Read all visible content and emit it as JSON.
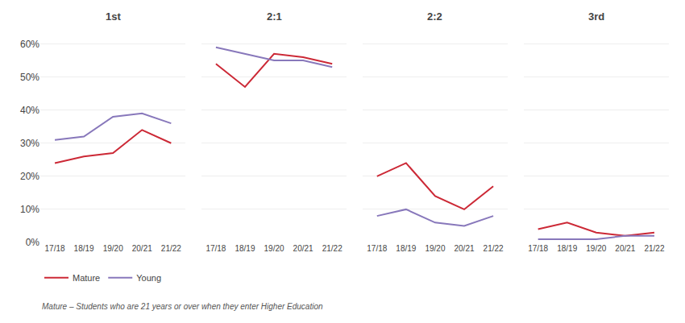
{
  "chart_data": [
    {
      "type": "line",
      "title": "1st",
      "categories": [
        "17/18",
        "18/19",
        "19/20",
        "20/21",
        "21/22"
      ],
      "series": [
        {
          "name": "Mature",
          "color": "#cc2936",
          "values": [
            24,
            26,
            27,
            34,
            30
          ]
        },
        {
          "name": "Young",
          "color": "#8878bb",
          "values": [
            31,
            32,
            38,
            39,
            36
          ]
        }
      ],
      "ylim": [
        0,
        65
      ],
      "yticks": [
        {
          "value": 0,
          "label": "0%"
        },
        {
          "value": 10,
          "label": "10%"
        },
        {
          "value": 20,
          "label": "20%"
        },
        {
          "value": 30,
          "label": "30%"
        },
        {
          "value": 40,
          "label": "40%"
        },
        {
          "value": 50,
          "label": "50%"
        },
        {
          "value": 60,
          "label": "60%"
        }
      ],
      "grid": true,
      "legend": "bottom left",
      "annotations": [
        "Mature – Students who are 21 years or over when they enter Higher Education"
      ]
    },
    {
      "type": "line",
      "title": "2:1",
      "categories": [
        "17/18",
        "18/19",
        "19/20",
        "20/21",
        "21/22"
      ],
      "series": [
        {
          "name": "Mature",
          "color": "#cc2936",
          "values": [
            54,
            47,
            57,
            56,
            54
          ]
        },
        {
          "name": "Young",
          "color": "#8878bb",
          "values": [
            59,
            57,
            55,
            55,
            53
          ]
        }
      ],
      "ylim": [
        0,
        65
      ],
      "yticks": [
        {
          "value": 0,
          "label": "0%"
        },
        {
          "value": 10,
          "label": "10%"
        },
        {
          "value": 20,
          "label": "20%"
        },
        {
          "value": 30,
          "label": "30%"
        },
        {
          "value": 40,
          "label": "40%"
        },
        {
          "value": 50,
          "label": "50%"
        },
        {
          "value": 60,
          "label": "60%"
        }
      ],
      "grid": true,
      "tick_labels": "x"
    },
    {
      "type": "line",
      "title": "2:2",
      "categories": [
        "17/18",
        "18/19",
        "19/20",
        "20/21",
        "21/22"
      ],
      "series": [
        {
          "name": "Mature",
          "color": "#cc2936",
          "values": [
            20,
            24,
            14,
            10,
            17
          ]
        },
        {
          "name": "Young",
          "color": "#8878bb",
          "values": [
            8,
            10,
            6,
            5,
            8
          ]
        }
      ],
      "ylim": [
        0,
        65
      ],
      "yticks": [
        {
          "value": 0,
          "label": "0%"
        },
        {
          "value": 10,
          "label": "10%"
        },
        {
          "value": 20,
          "label": "20%"
        },
        {
          "value": 30,
          "label": "30%"
        },
        {
          "value": 40,
          "label": "40%"
        },
        {
          "value": 50,
          "label": "50%"
        },
        {
          "value": 60,
          "label": "60%"
        }
      ],
      "grid": true,
      "tick_labels": "x"
    },
    {
      "type": "line",
      "title": "3rd",
      "categories": [
        "17/18",
        "18/19",
        "19/20",
        "20/21",
        "21/22"
      ],
      "series": [
        {
          "name": "Mature",
          "color": "#cc2936",
          "values": [
            4,
            6,
            3,
            2,
            3
          ]
        },
        {
          "name": "Young",
          "color": "#8878bb",
          "values": [
            1,
            1,
            1,
            2,
            2
          ]
        }
      ],
      "ylim": [
        0,
        65
      ],
      "yticks": [
        {
          "value": 0,
          "label": "0%"
        },
        {
          "value": 10,
          "label": "10%"
        },
        {
          "value": 20,
          "label": "20%"
        },
        {
          "value": 30,
          "label": "30%"
        },
        {
          "value": 40,
          "label": "40%"
        },
        {
          "value": 50,
          "label": "50%"
        },
        {
          "value": 60,
          "label": "60%"
        }
      ],
      "grid": true,
      "tick_labels": "x"
    }
  ]
}
